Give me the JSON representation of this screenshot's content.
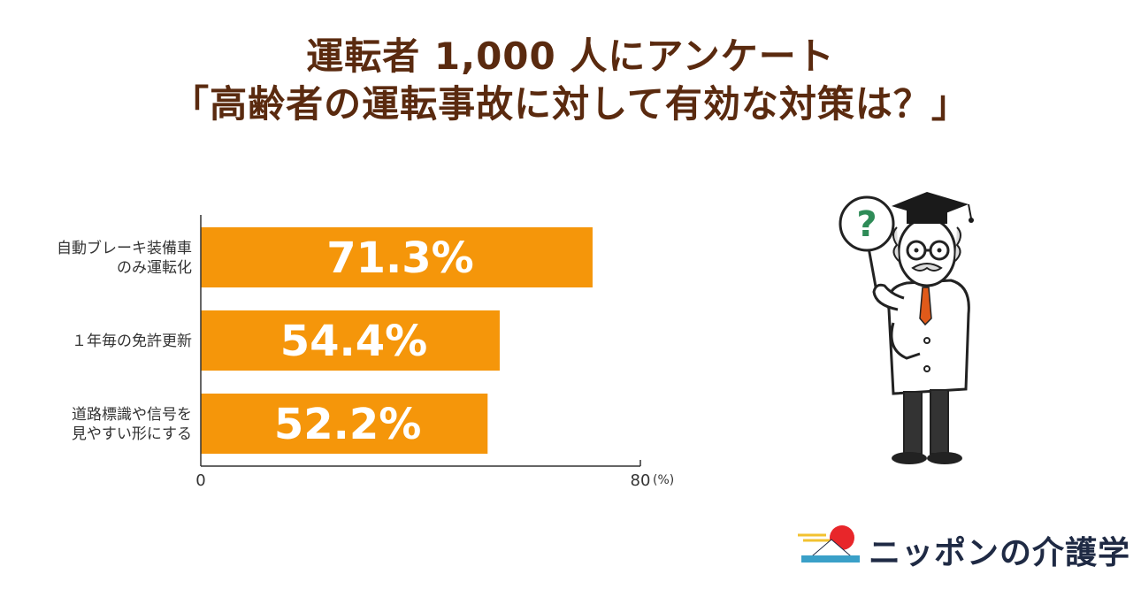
{
  "title": {
    "line1": "運転者 1,000 人にアンケート",
    "line2": "「高齢者の運転事故に対して有効な対策は？」"
  },
  "chart_data": {
    "type": "bar",
    "orientation": "horizontal",
    "categories": [
      [
        "自動ブレーキ装備車",
        "のみ運転化"
      ],
      [
        "１年毎の免許更新"
      ],
      [
        "道路標識や信号を",
        "見やすい形にする"
      ]
    ],
    "values": [
      71.3,
      54.4,
      52.2
    ],
    "value_labels": [
      "71.3%",
      "54.4%",
      "52.2%"
    ],
    "xlim": [
      0,
      80
    ],
    "x_ticks": [
      "0",
      "80"
    ],
    "unit_label": "(%)",
    "bar_color": "#f5960a",
    "grid": false
  },
  "illustration": {
    "sign_glyph": "?",
    "sign_color": "#2e8b57"
  },
  "logo": {
    "text": "ニッポンの介護学",
    "sun_color": "#e8262a",
    "wave_color": "#3aa0c8",
    "stripe_color": "#f2c230"
  }
}
